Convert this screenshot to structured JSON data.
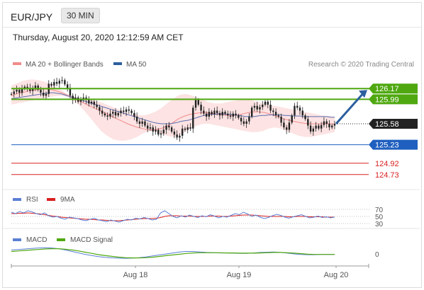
{
  "header": {
    "pair": "EUR/JPY",
    "timeframe": "30 MIN",
    "datetime": "Thursday, August 20, 2020 12:12:59 AM CET"
  },
  "legend_main": [
    {
      "label": "MA 20 + Bollinger Bands",
      "color": "#f28b8b"
    },
    {
      "label": "MA 50",
      "color": "#2c5f9e"
    }
  ],
  "research_note": "Research © 2020 Trading Central",
  "legend_rsi": [
    {
      "label": "RSI",
      "color": "#5b7fd4"
    },
    {
      "label": "9MA",
      "color": "#d92020"
    }
  ],
  "legend_macd": [
    {
      "label": "MACD",
      "color": "#5b7fd4"
    },
    {
      "label": "MACD Signal",
      "color": "#4fa810"
    }
  ],
  "colors": {
    "resistance": "#4fa810",
    "current": "#222222",
    "pivot": "#1f5fbf",
    "support": "#d92020",
    "candle": "#222222",
    "band_fill": "#fde3e3",
    "arrow": "#2c5f9e"
  },
  "chart_data": {
    "type": "line",
    "title": "EUR/JPY 30 MIN",
    "x_ticks": [
      "Aug 18",
      "Aug 19",
      "Aug 20"
    ],
    "ylim": [
      124.55,
      126.35
    ],
    "levels": [
      {
        "label": "126.17",
        "value": 126.17,
        "kind": "resistance"
      },
      {
        "label": "125.99",
        "value": 125.99,
        "kind": "resistance"
      },
      {
        "label": "125.58",
        "value": 125.58,
        "kind": "current"
      },
      {
        "label": "125.23",
        "value": 125.23,
        "kind": "pivot"
      },
      {
        "label": "124.92",
        "value": 124.92,
        "kind": "support"
      },
      {
        "label": "124.73",
        "value": 124.73,
        "kind": "support"
      }
    ],
    "close": [
      126.08,
      126.12,
      126.15,
      126.1,
      126.17,
      126.2,
      126.18,
      126.13,
      126.18,
      126.22,
      126.15,
      126.1,
      126.05,
      126.08,
      126.25,
      126.22,
      126.28,
      126.25,
      126.3,
      126.31,
      126.24,
      126.18,
      126.05,
      125.98,
      126.02,
      125.95,
      125.98,
      126.02,
      125.98,
      125.92,
      125.95,
      125.9,
      125.86,
      125.8,
      125.75,
      125.72,
      125.7,
      125.75,
      125.78,
      125.72,
      125.76,
      125.8,
      125.78,
      125.82,
      125.8,
      125.76,
      125.7,
      125.62,
      125.58,
      125.62,
      125.55,
      125.5,
      125.52,
      125.45,
      125.48,
      125.4,
      125.42,
      125.48,
      125.55,
      125.52,
      125.45,
      125.4,
      125.35,
      125.38,
      125.5,
      125.48,
      125.52,
      125.5,
      125.85,
      125.98,
      125.9,
      125.8,
      125.75,
      125.7,
      125.78,
      125.74,
      125.8,
      125.76,
      125.72,
      125.78,
      125.75,
      125.72,
      125.7,
      125.75,
      125.72,
      125.68,
      125.62,
      125.58,
      125.62,
      125.7,
      125.85,
      125.88,
      125.82,
      125.86,
      125.9,
      125.95,
      125.9,
      125.8,
      125.78,
      125.72,
      125.7,
      125.6,
      125.52,
      125.48,
      125.6,
      125.72,
      125.88,
      125.85,
      125.8,
      125.72,
      125.66,
      125.55,
      125.45,
      125.5,
      125.55,
      125.5,
      125.56,
      125.62,
      125.58,
      125.52,
      125.55,
      125.58
    ],
    "ma50": [
      126.0,
      126.01,
      126.02,
      126.03,
      126.04,
      126.05,
      126.06,
      126.07,
      126.08,
      126.09,
      126.1,
      126.1,
      126.09,
      126.08,
      126.06,
      126.04,
      126.02,
      126.0,
      125.98,
      125.96,
      125.94,
      125.92,
      125.9,
      125.88,
      125.86,
      125.84,
      125.82,
      125.8,
      125.78,
      125.76,
      125.74,
      125.72,
      125.7,
      125.68,
      125.66,
      125.64,
      125.62,
      125.6,
      125.59,
      125.58,
      125.58,
      125.58,
      125.59,
      125.6,
      125.62,
      125.63,
      125.64,
      125.66,
      125.68,
      125.7,
      125.72,
      125.73,
      125.74,
      125.74,
      125.75,
      125.75,
      125.74,
      125.74,
      125.73,
      125.72,
      125.71,
      125.7,
      125.7,
      125.7,
      125.71,
      125.72,
      125.72,
      125.73,
      125.73,
      125.73,
      125.73,
      125.72,
      125.72,
      125.71,
      125.71,
      125.71,
      125.7,
      125.7,
      125.7,
      125.7,
      125.7,
      125.7,
      125.7,
      125.69,
      125.69
    ],
    "ma20": [
      126.05,
      126.08,
      126.1,
      126.12,
      126.14,
      126.15,
      126.16,
      126.16,
      126.15,
      126.13,
      126.1,
      126.06,
      126.02,
      125.98,
      125.94,
      125.9,
      125.86,
      125.82,
      125.78,
      125.74,
      125.7,
      125.66,
      125.62,
      125.58,
      125.55,
      125.52,
      125.5,
      125.48,
      125.48,
      125.49,
      125.51,
      125.55,
      125.6,
      125.66,
      125.7,
      125.73,
      125.75,
      125.76,
      125.77,
      125.76,
      125.75,
      125.74,
      125.73,
      125.72,
      125.72,
      125.73,
      125.75,
      125.77,
      125.78,
      125.78,
      125.77,
      125.75,
      125.72,
      125.69,
      125.66,
      125.64,
      125.62,
      125.6,
      125.59,
      125.58,
      125.58,
      125.58,
      125.58,
      125.58,
      125.58
    ],
    "bb_upper": [
      126.22,
      126.26,
      126.3,
      126.32,
      126.32,
      126.3,
      126.27,
      126.22,
      126.16,
      126.1,
      126.05,
      126.02,
      126.0,
      125.98,
      125.96,
      125.94,
      125.9,
      125.86,
      125.82,
      125.78,
      125.75,
      125.73,
      125.72,
      125.74,
      125.78,
      125.84,
      125.92,
      126.0,
      126.06,
      126.08,
      126.06,
      126.02,
      125.98,
      125.94,
      125.92,
      125.92,
      125.94,
      125.96,
      125.98,
      126.0,
      125.98,
      125.95,
      125.92,
      125.9,
      125.88,
      125.86,
      125.84,
      125.82,
      125.8,
      125.78,
      125.76,
      125.74,
      125.72,
      125.71,
      125.7
    ],
    "bb_lower": [
      125.9,
      125.92,
      125.94,
      125.96,
      125.98,
      126.0,
      126.02,
      126.04,
      126.05,
      126.04,
      126.0,
      125.92,
      125.82,
      125.7,
      125.58,
      125.46,
      125.38,
      125.32,
      125.3,
      125.3,
      125.32,
      125.36,
      125.42,
      125.46,
      125.46,
      125.42,
      125.38,
      125.36,
      125.38,
      125.44,
      125.5,
      125.55,
      125.58,
      125.58,
      125.56,
      125.54,
      125.52,
      125.5,
      125.48,
      125.46,
      125.44,
      125.44,
      125.46,
      125.5,
      125.52,
      125.5,
      125.46,
      125.42,
      125.38,
      125.36,
      125.36,
      125.38,
      125.4,
      125.42,
      125.44
    ],
    "rsi": {
      "ticks": [
        70,
        50,
        30
      ],
      "ylim": [
        20,
        80
      ],
      "rsi": [
        62,
        58,
        64,
        60,
        66,
        63,
        58,
        55,
        60,
        52,
        48,
        50,
        45,
        42,
        48,
        46,
        44,
        40,
        38,
        42,
        45,
        40,
        38,
        35,
        40,
        37,
        34,
        38,
        42,
        40,
        45,
        43,
        47,
        44,
        40,
        42,
        60,
        66,
        58,
        50,
        46,
        52,
        48,
        54,
        50,
        47,
        52,
        49,
        55,
        51,
        46,
        50,
        48,
        53,
        58,
        55,
        62,
        57,
        50,
        54,
        48,
        44,
        47,
        52,
        56,
        53,
        48,
        45,
        49,
        52,
        55,
        50,
        46,
        48,
        51,
        47,
        49,
        46,
        48
      ],
      "ma9": [
        58,
        58,
        59,
        59,
        60,
        59,
        58,
        57,
        55,
        53,
        51,
        50,
        48,
        47,
        46,
        45,
        44,
        43,
        42,
        42,
        41,
        40,
        40,
        39,
        38,
        38,
        38,
        39,
        40,
        41,
        42,
        43,
        44,
        44,
        44,
        45,
        47,
        50,
        52,
        52,
        52,
        51,
        51,
        51,
        50,
        50,
        50,
        50,
        51,
        51,
        51,
        50,
        50,
        51,
        52,
        53,
        54,
        54,
        54,
        53,
        52,
        51,
        50,
        50,
        50,
        50,
        50,
        49,
        49,
        50,
        50,
        50,
        49,
        49,
        49,
        49,
        48,
        48,
        48
      ]
    },
    "macd": {
      "ticks": [
        0
      ],
      "ylim": [
        -0.4,
        0.4
      ],
      "macd": [
        0.16,
        0.18,
        0.2,
        0.22,
        0.24,
        0.25,
        0.24,
        0.21,
        0.16,
        0.1,
        0.04,
        -0.02,
        -0.07,
        -0.11,
        -0.14,
        -0.16,
        -0.17,
        -0.18,
        -0.17,
        -0.15,
        -0.12,
        -0.08,
        -0.04,
        0.0,
        0.04,
        0.08,
        0.1,
        0.1,
        0.08,
        0.06,
        0.05,
        0.04,
        0.04,
        0.03,
        0.02,
        0.02,
        0.04,
        0.06,
        0.07,
        0.08,
        0.06,
        0.03,
        0.0,
        -0.02,
        -0.03,
        -0.03,
        -0.02,
        -0.02,
        -0.02
      ],
      "signal": [
        0.1,
        0.12,
        0.14,
        0.16,
        0.18,
        0.2,
        0.21,
        0.21,
        0.19,
        0.16,
        0.12,
        0.07,
        0.02,
        -0.03,
        -0.07,
        -0.1,
        -0.13,
        -0.15,
        -0.16,
        -0.16,
        -0.15,
        -0.13,
        -0.1,
        -0.07,
        -0.04,
        -0.01,
        0.02,
        0.04,
        0.05,
        0.05,
        0.05,
        0.05,
        0.04,
        0.04,
        0.03,
        0.03,
        0.03,
        0.04,
        0.05,
        0.06,
        0.06,
        0.05,
        0.03,
        0.01,
        -0.01,
        -0.02,
        -0.02,
        -0.02,
        -0.02
      ]
    }
  }
}
